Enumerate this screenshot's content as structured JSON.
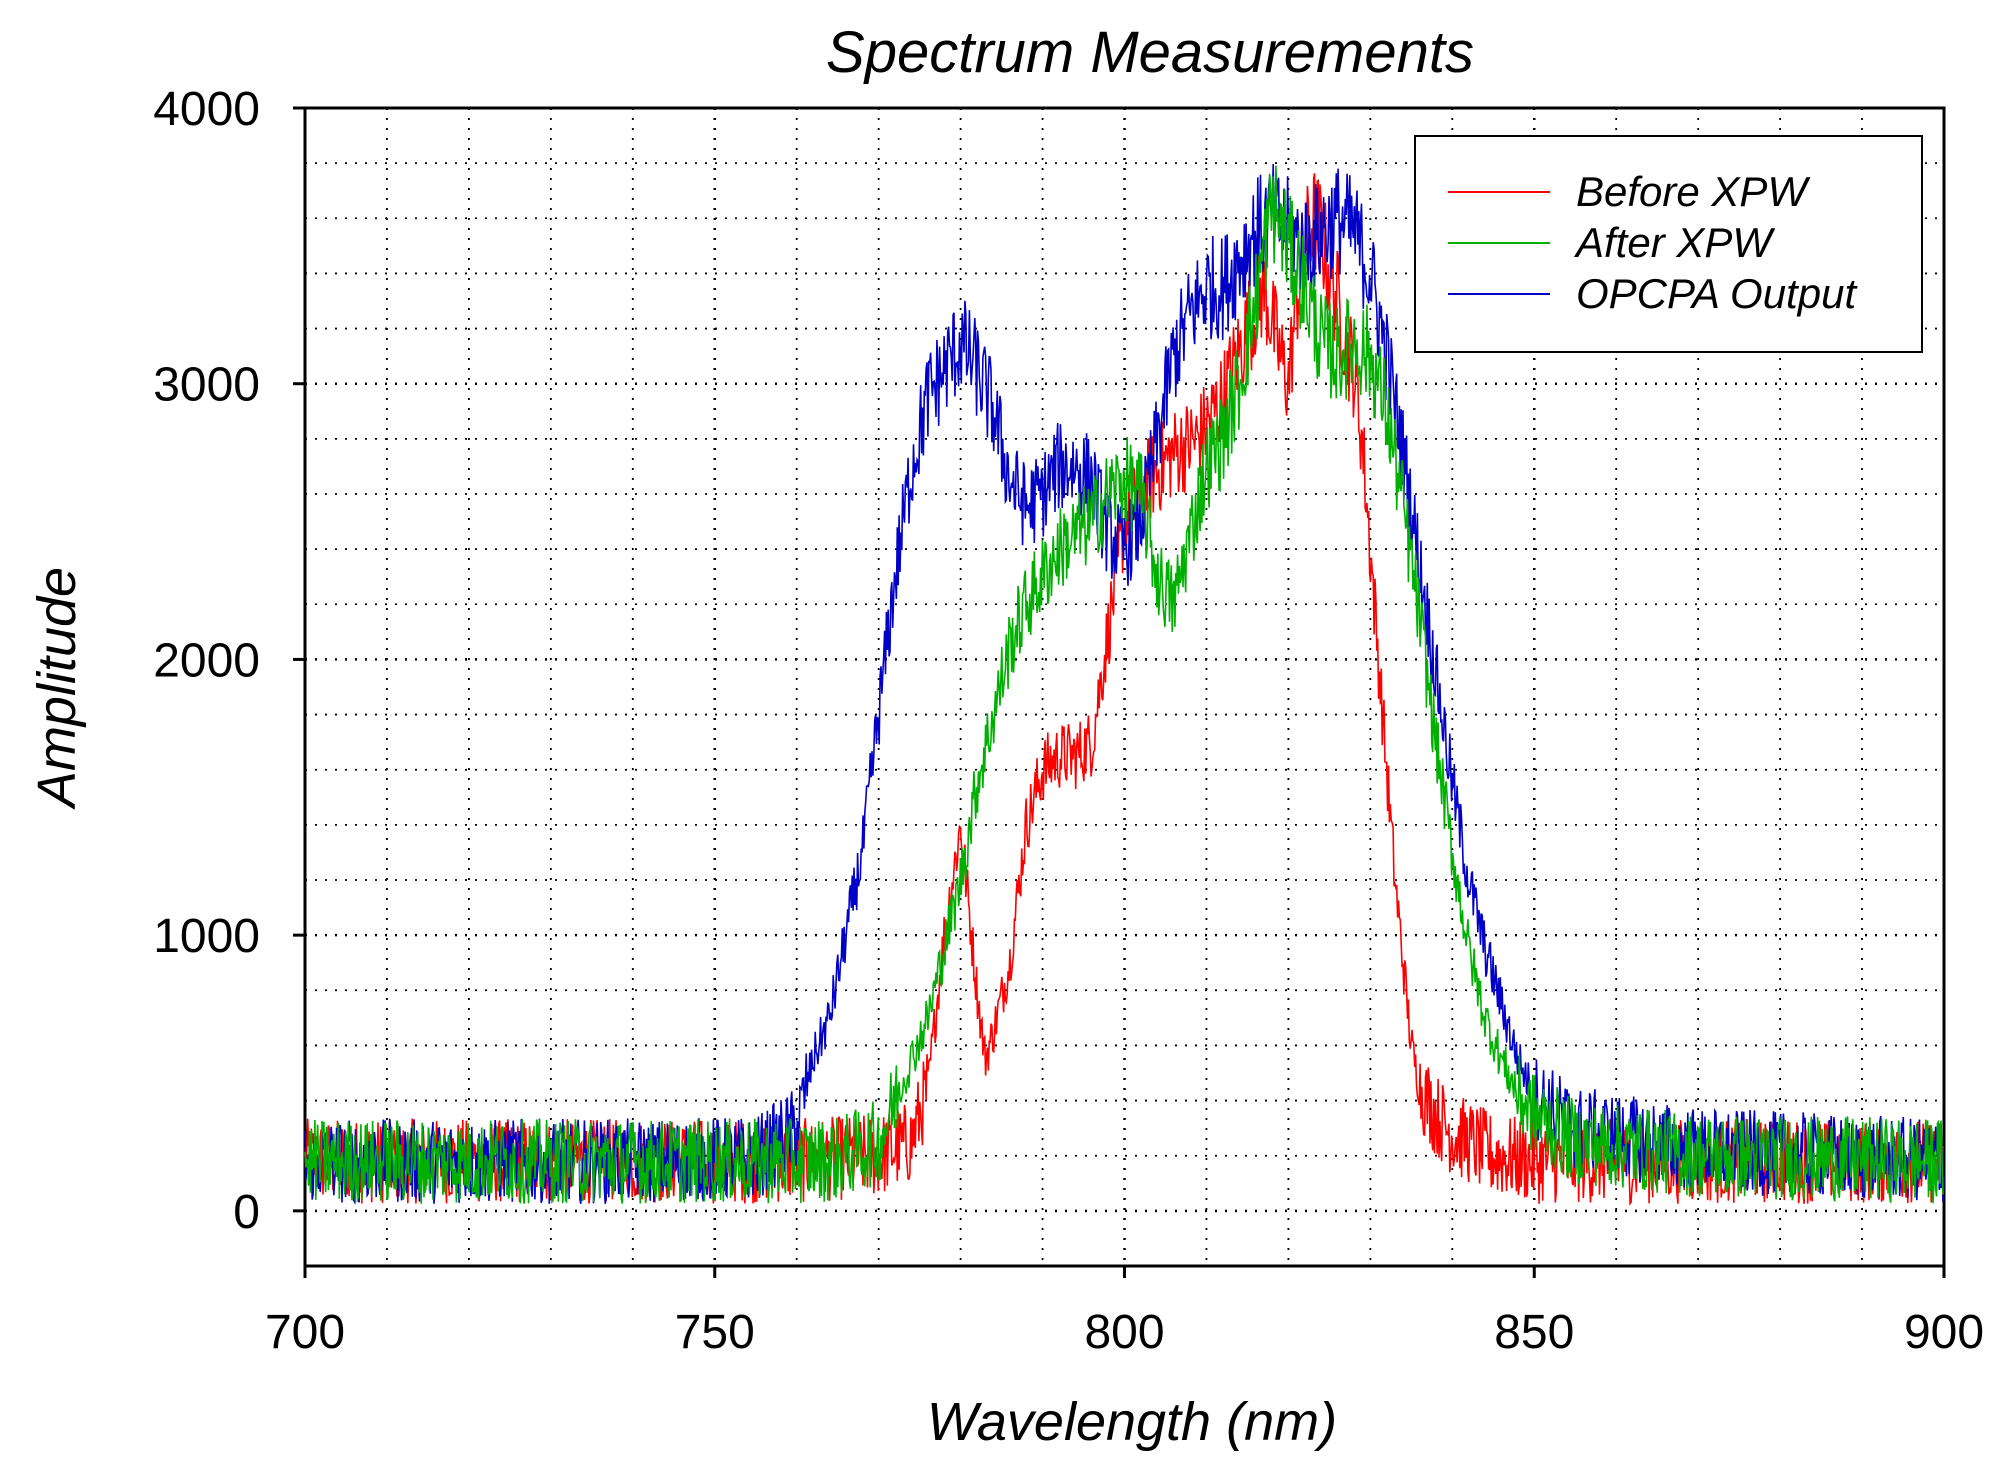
{
  "chart_data": {
    "type": "line",
    "title": "Spectrum Measurements",
    "xlabel": "Wavelength (nm)",
    "ylabel": "Amplitude",
    "xlim": [
      700,
      900
    ],
    "ylim": [
      -200,
      4000
    ],
    "xticks": [
      700,
      750,
      800,
      850,
      900
    ],
    "yticks": [
      0,
      1000,
      2000,
      3000,
      4000
    ],
    "xtick_labels": [
      "700",
      "750",
      "800",
      "850",
      "900"
    ],
    "ytick_labels": [
      "0",
      "1000",
      "2000",
      "3000",
      "4000"
    ],
    "grid": true,
    "legend_position": "top-right",
    "series": [
      {
        "name": "Before XPW",
        "color": "#ff0000",
        "x": [
          700,
          720,
          740,
          760,
          765,
          770,
          774,
          776,
          778,
          780,
          781,
          782,
          783,
          784,
          786,
          788,
          790,
          792,
          794,
          796,
          798,
          800,
          803,
          806,
          809,
          812,
          815,
          817,
          819,
          820,
          821,
          822,
          823,
          824,
          825,
          826,
          827,
          828,
          829,
          830,
          831,
          832,
          833,
          834,
          835,
          836,
          838,
          840,
          842,
          845,
          850,
          870,
          900
        ],
        "values": [
          180,
          180,
          180,
          180,
          190,
          200,
          250,
          450,
          1000,
          1400,
          1100,
          800,
          550,
          650,
          900,
          1400,
          1600,
          1650,
          1650,
          1700,
          2100,
          2500,
          2650,
          2750,
          2800,
          2950,
          3200,
          3350,
          3100,
          3000,
          3300,
          3500,
          3600,
          3550,
          3400,
          3300,
          3150,
          3050,
          2800,
          2400,
          2000,
          1600,
          1200,
          900,
          600,
          450,
          350,
          280,
          250,
          200,
          180,
          180,
          180
        ]
      },
      {
        "name": "After XPW",
        "color": "#00b000",
        "x": [
          700,
          720,
          740,
          760,
          765,
          770,
          772,
          774,
          776,
          778,
          780,
          782,
          784,
          786,
          788,
          790,
          792,
          794,
          796,
          798,
          800,
          802,
          804,
          806,
          808,
          810,
          812,
          814,
          816,
          818,
          820,
          822,
          824,
          826,
          828,
          830,
          832,
          834,
          836,
          838,
          840,
          842,
          844,
          846,
          848,
          850,
          855,
          870,
          900
        ],
        "values": [
          180,
          180,
          180,
          180,
          190,
          250,
          400,
          550,
          700,
          950,
          1200,
          1550,
          1800,
          2050,
          2200,
          2300,
          2400,
          2450,
          2500,
          2600,
          2650,
          2600,
          2300,
          2200,
          2450,
          2700,
          2800,
          3000,
          3300,
          3650,
          3500,
          3350,
          3150,
          3100,
          3150,
          3100,
          2900,
          2550,
          2150,
          1700,
          1300,
          950,
          700,
          550,
          420,
          350,
          250,
          200,
          180
        ]
      },
      {
        "name": "OPCPA Output",
        "color": "#0000c8",
        "x": [
          700,
          720,
          740,
          755,
          760,
          762,
          764,
          766,
          768,
          770,
          772,
          774,
          776,
          778,
          780,
          782,
          784,
          786,
          788,
          790,
          792,
          794,
          796,
          798,
          800,
          802,
          804,
          806,
          808,
          810,
          812,
          814,
          816,
          818,
          820,
          822,
          824,
          826,
          828,
          830,
          832,
          834,
          836,
          838,
          840,
          842,
          844,
          846,
          848,
          850,
          855,
          870,
          900
        ],
        "values": [
          180,
          180,
          180,
          190,
          300,
          550,
          700,
          1000,
          1300,
          1800,
          2300,
          2700,
          2950,
          3050,
          3150,
          3050,
          2900,
          2650,
          2550,
          2600,
          2700,
          2700,
          2650,
          2450,
          2400,
          2500,
          2800,
          3100,
          3250,
          3350,
          3350,
          3450,
          3550,
          3600,
          3550,
          3500,
          3550,
          3600,
          3550,
          3400,
          3100,
          2750,
          2350,
          1950,
          1550,
          1200,
          950,
          750,
          550,
          420,
          300,
          220,
          180
        ]
      }
    ]
  }
}
